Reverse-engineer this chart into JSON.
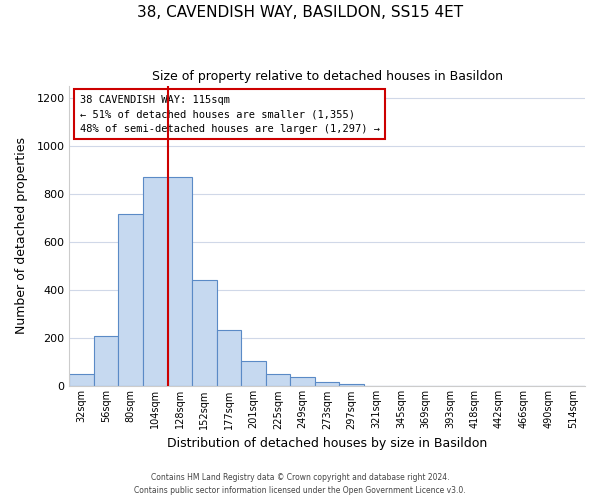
{
  "title1": "38, CAVENDISH WAY, BASILDON, SS15 4ET",
  "title2": "Size of property relative to detached houses in Basildon",
  "xlabel": "Distribution of detached houses by size in Basildon",
  "ylabel": "Number of detached properties",
  "footer1": "Contains HM Land Registry data © Crown copyright and database right 2024.",
  "footer2": "Contains public sector information licensed under the Open Government Licence v3.0.",
  "bar_labels": [
    "32sqm",
    "56sqm",
    "80sqm",
    "104sqm",
    "128sqm",
    "152sqm",
    "177sqm",
    "201sqm",
    "225sqm",
    "249sqm",
    "273sqm",
    "297sqm",
    "321sqm",
    "345sqm",
    "369sqm",
    "393sqm",
    "418sqm",
    "442sqm",
    "466sqm",
    "490sqm",
    "514sqm"
  ],
  "bar_values": [
    50,
    210,
    715,
    870,
    870,
    440,
    235,
    105,
    50,
    40,
    20,
    10,
    0,
    0,
    0,
    0,
    0,
    0,
    0,
    0,
    0
  ],
  "bar_color": "#c6d9f0",
  "bar_edge_color": "#5a8ac6",
  "reference_line_color": "#cc0000",
  "annotation_title": "38 CAVENDISH WAY: 115sqm",
  "annotation_line1": "← 51% of detached houses are smaller (1,355)",
  "annotation_line2": "48% of semi-detached houses are larger (1,297) →",
  "annotation_box_edge_color": "#cc0000",
  "ylim": [
    0,
    1250
  ],
  "yticks": [
    0,
    200,
    400,
    600,
    800,
    1000,
    1200
  ],
  "grid_color": "#d0d8e8",
  "background_color": "#ffffff"
}
